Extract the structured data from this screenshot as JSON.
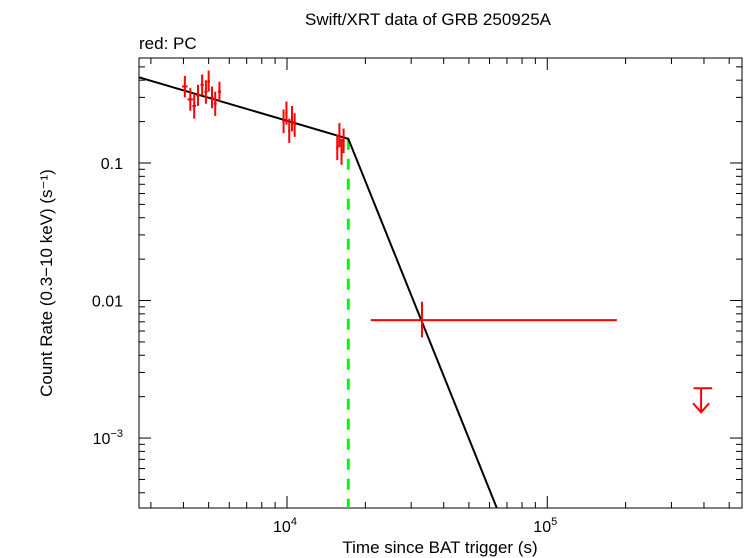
{
  "chart_data": {
    "type": "scatter",
    "title": "Swift/XRT data of GRB 250925A",
    "subtitle": "red: PC",
    "xlabel": "Time since BAT trigger (s)",
    "ylabel": "Count Rate (0.3−10 keV) (s⁻¹)",
    "x_scale": "log",
    "y_scale": "log",
    "xlim": [
      2700,
      560000
    ],
    "ylim": [
      0.00031,
      0.58
    ],
    "x_ticks": [
      {
        "value": 10000,
        "base": "10",
        "exp": "4"
      },
      {
        "value": 100000,
        "base": "10",
        "exp": "5"
      }
    ],
    "y_ticks": [
      {
        "value": 0.1,
        "label": "0.1"
      },
      {
        "value": 0.01,
        "label": "0.01"
      },
      {
        "value": 0.001,
        "base": "10",
        "exp": "−3"
      }
    ],
    "colors": {
      "data": "#ff0000",
      "model": "#000000",
      "break": "#00ff00"
    },
    "series": [
      {
        "name": "PC",
        "points": [
          {
            "x": 4050,
            "xlo": 3950,
            "xhi": 4150,
            "y": 0.36,
            "ylo": 0.3,
            "yhi": 0.43
          },
          {
            "x": 4250,
            "xlo": 4150,
            "xhi": 4350,
            "y": 0.29,
            "ylo": 0.24,
            "yhi": 0.35
          },
          {
            "x": 4400,
            "xlo": 4330,
            "xhi": 4470,
            "y": 0.26,
            "ylo": 0.21,
            "yhi": 0.32
          },
          {
            "x": 4550,
            "xlo": 4480,
            "xhi": 4620,
            "y": 0.31,
            "ylo": 0.26,
            "yhi": 0.37
          },
          {
            "x": 4720,
            "xlo": 4650,
            "xhi": 4790,
            "y": 0.37,
            "ylo": 0.31,
            "yhi": 0.44
          },
          {
            "x": 4880,
            "xlo": 4810,
            "xhi": 4950,
            "y": 0.33,
            "ylo": 0.27,
            "yhi": 0.4
          },
          {
            "x": 5000,
            "xlo": 4940,
            "xhi": 5060,
            "y": 0.39,
            "ylo": 0.33,
            "yhi": 0.47
          },
          {
            "x": 5150,
            "xlo": 5080,
            "xhi": 5220,
            "y": 0.3,
            "ylo": 0.25,
            "yhi": 0.36
          },
          {
            "x": 5300,
            "xlo": 5230,
            "xhi": 5370,
            "y": 0.27,
            "ylo": 0.22,
            "yhi": 0.33
          },
          {
            "x": 5500,
            "xlo": 5420,
            "xhi": 5580,
            "y": 0.33,
            "ylo": 0.28,
            "yhi": 0.39
          },
          {
            "x": 9700,
            "xlo": 9600,
            "xhi": 9800,
            "y": 0.2,
            "ylo": 0.165,
            "yhi": 0.245
          },
          {
            "x": 9950,
            "xlo": 9850,
            "xhi": 10050,
            "y": 0.23,
            "ylo": 0.19,
            "yhi": 0.28
          },
          {
            "x": 10200,
            "xlo": 10100,
            "xhi": 10300,
            "y": 0.17,
            "ylo": 0.14,
            "yhi": 0.21
          },
          {
            "x": 10450,
            "xlo": 10350,
            "xhi": 10550,
            "y": 0.21,
            "ylo": 0.17,
            "yhi": 0.26
          },
          {
            "x": 10700,
            "xlo": 10600,
            "xhi": 10800,
            "y": 0.19,
            "ylo": 0.155,
            "yhi": 0.23
          },
          {
            "x": 15600,
            "xlo": 15450,
            "xhi": 15750,
            "y": 0.13,
            "ylo": 0.105,
            "yhi": 0.16
          },
          {
            "x": 15900,
            "xlo": 15750,
            "xhi": 16050,
            "y": 0.16,
            "ylo": 0.13,
            "yhi": 0.195
          },
          {
            "x": 16200,
            "xlo": 16050,
            "xhi": 16350,
            "y": 0.12,
            "ylo": 0.097,
            "yhi": 0.15
          },
          {
            "x": 16500,
            "xlo": 16350,
            "xhi": 16650,
            "y": 0.145,
            "ylo": 0.118,
            "yhi": 0.178
          },
          {
            "x": 33000,
            "xlo": 21000,
            "xhi": 185000,
            "y": 0.0072,
            "ylo": 0.0054,
            "yhi": 0.0098
          }
        ],
        "upper_limits": [
          {
            "x": 390000,
            "xlo": 365000,
            "xhi": 430000,
            "y": 0.0023
          }
        ]
      }
    ],
    "model": {
      "name": "broken power law",
      "points": [
        [
          2700,
          0.42
        ],
        [
          17200,
          0.15
        ],
        [
          64000,
          0.00031
        ]
      ]
    },
    "break_time": 17200
  }
}
